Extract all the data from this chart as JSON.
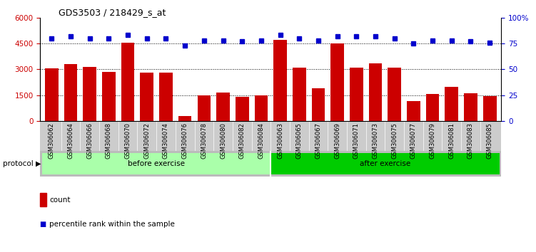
{
  "title": "GDS3503 / 218429_s_at",
  "categories": [
    "GSM306062",
    "GSM306064",
    "GSM306066",
    "GSM306068",
    "GSM306070",
    "GSM306072",
    "GSM306074",
    "GSM306076",
    "GSM306078",
    "GSM306080",
    "GSM306082",
    "GSM306084",
    "GSM306063",
    "GSM306065",
    "GSM306067",
    "GSM306069",
    "GSM306071",
    "GSM306073",
    "GSM306075",
    "GSM306077",
    "GSM306079",
    "GSM306081",
    "GSM306083",
    "GSM306085"
  ],
  "counts": [
    3050,
    3300,
    3150,
    2850,
    4550,
    2800,
    2800,
    300,
    1500,
    1650,
    1400,
    1500,
    4700,
    3100,
    1900,
    4500,
    3100,
    3350,
    3100,
    1150,
    1550,
    2000,
    1600,
    1450
  ],
  "percentiles": [
    80,
    82,
    80,
    80,
    83,
    80,
    80,
    73,
    78,
    78,
    77,
    78,
    83,
    80,
    78,
    82,
    82,
    82,
    80,
    75,
    78,
    78,
    77,
    76
  ],
  "before_count": 12,
  "after_count": 12,
  "bar_color": "#CC0000",
  "dot_color": "#0000CC",
  "before_color": "#AAFFAA",
  "after_color": "#00CC00",
  "label_bg": "#CCCCCC",
  "left_ylim": [
    0,
    6000
  ],
  "left_yticks": [
    0,
    1500,
    3000,
    4500,
    6000
  ],
  "right_ylim": [
    0,
    100
  ],
  "right_yticks": [
    0,
    25,
    50,
    75,
    100
  ],
  "bg_color": "#FFFFFF",
  "plot_bg": "#FFFFFF"
}
